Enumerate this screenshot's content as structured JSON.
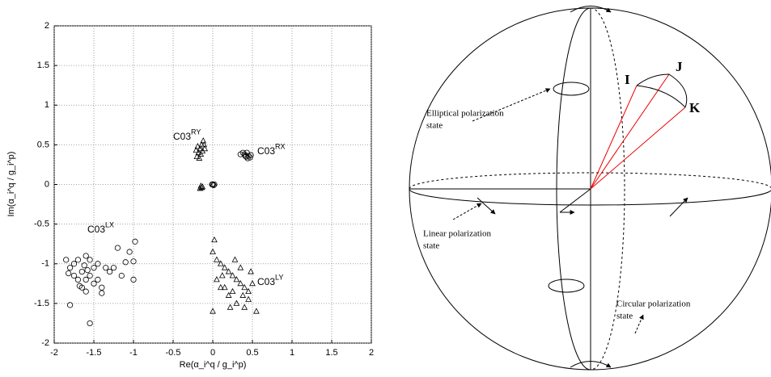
{
  "chart_data": {
    "type": "scatter",
    "xlabel": "Re(α_i^q / g_i^p)",
    "ylabel": "Im(α_i^q / g_i^p)",
    "xlim": [
      -2,
      2
    ],
    "ylim": [
      -2,
      2
    ],
    "xticks": [
      -2,
      -1.5,
      -1,
      -0.5,
      0,
      0.5,
      1,
      1.5,
      2
    ],
    "yticks": [
      -2,
      -1.5,
      -1,
      -0.5,
      0,
      0.5,
      1,
      1.5,
      2
    ],
    "grid": true,
    "color": "#000000",
    "annotations": [
      {
        "text": "C03",
        "sup": "RY"
      },
      {
        "text": "C03",
        "sup": "RX"
      },
      {
        "text": "C03",
        "sup": "LX"
      },
      {
        "text": "C03",
        "sup": "LY"
      }
    ],
    "series": [
      {
        "marker": "circle",
        "x": [
          -1.8,
          -1.55,
          -0.98,
          -1.0,
          -1.0,
          -1.1,
          -1.2,
          -1.25,
          -1.3,
          -1.4,
          -1.4,
          -1.45,
          -1.5,
          -1.55,
          -1.6,
          -1.65,
          -1.7,
          -1.75,
          -1.8,
          -1.85,
          -1.6,
          -1.65,
          -1.5,
          -1.55,
          -1.7,
          -1.75,
          -1.45,
          -1.35,
          -1.6,
          -1.15,
          -1.05,
          -1.82,
          -1.58,
          -1.62,
          -1.68
        ],
        "y": [
          -1.52,
          -1.75,
          -0.72,
          -0.97,
          -1.2,
          -0.98,
          -0.8,
          -1.05,
          -1.1,
          -1.3,
          -1.37,
          -1.0,
          -1.05,
          -1.15,
          -1.2,
          -1.1,
          -0.95,
          -1.0,
          -1.05,
          -0.95,
          -0.9,
          -1.3,
          -1.25,
          -0.95,
          -1.2,
          -1.15,
          -1.2,
          -1.05,
          -1.35,
          -1.15,
          -0.85,
          -1.12,
          -1.08,
          -1.02,
          -1.28
        ]
      },
      {
        "marker": "triangle",
        "x": [
          -0.2,
          -0.18,
          -0.16,
          -0.14,
          -0.12,
          -0.1,
          -0.19,
          -0.15,
          -0.17,
          -0.13,
          -0.21,
          -0.11,
          -0.15,
          -0.14,
          -0.13,
          -0.16
        ],
        "y": [
          0.35,
          0.4,
          0.45,
          0.5,
          0.55,
          0.45,
          0.48,
          0.38,
          0.33,
          0.42,
          0.43,
          0.5,
          -0.02,
          -0.04,
          -0.03,
          -0.05
        ]
      },
      {
        "marker": "circle",
        "x": [
          0.35,
          0.4,
          0.42,
          0.45,
          0.47,
          0.43,
          0.38,
          0.48,
          0.44,
          0.41,
          0,
          0.01,
          0.02,
          -0.01
        ],
        "y": [
          0.38,
          0.38,
          0.35,
          0.36,
          0.34,
          0.4,
          0.4,
          0.37,
          0.33,
          0.36,
          0,
          -0.01,
          0,
          0
        ]
      },
      {
        "marker": "triangle",
        "x": [
          0.02,
          0,
          0.05,
          0.1,
          0.15,
          0.2,
          0.25,
          0.3,
          0.35,
          0.4,
          0.45,
          0.5,
          0.55,
          0.4,
          0.3,
          0.2,
          0.1,
          0,
          0.05,
          0.15,
          0.25,
          0.35,
          0.45,
          0.28,
          0.12,
          0.38,
          0.22,
          0.48
        ],
        "y": [
          -0.7,
          -0.85,
          -0.95,
          -1.0,
          -1.05,
          -1.1,
          -1.15,
          -1.2,
          -1.25,
          -1.3,
          -1.35,
          -1.25,
          -1.6,
          -1.55,
          -1.5,
          -1.4,
          -1.3,
          -1.6,
          -1.2,
          -1.3,
          -1.35,
          -1.05,
          -1.45,
          -0.95,
          -1.15,
          -1.4,
          -1.55,
          -1.1
        ]
      }
    ]
  },
  "diagram": {
    "points": [
      "I",
      "J",
      "K"
    ],
    "labels": {
      "elliptical": [
        "Elliptical polarization",
        "state"
      ],
      "linear": [
        "Linear polarization",
        "state"
      ],
      "circular": [
        "Circular polarization",
        "state"
      ]
    }
  }
}
